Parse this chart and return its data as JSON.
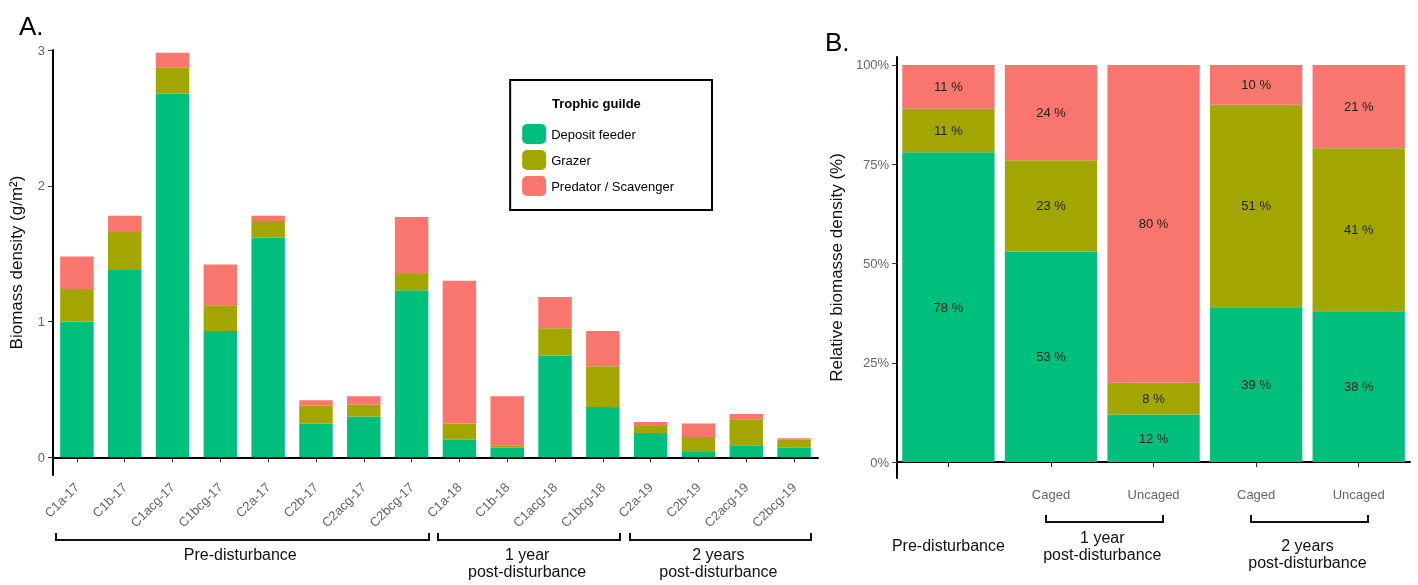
{
  "chart_data": [
    {
      "type": "bar",
      "stacked": true,
      "title": "A.",
      "ylabel": "Biomass density (g/m²)",
      "legend_title": "Trophic guilde",
      "legend": "top right",
      "grid": false,
      "categories": [
        "C1a-17",
        "C1b-17",
        "C1acg-17",
        "C1bcg-17",
        "C2a-17",
        "C2b-17",
        "C2acg-17",
        "C2bcg-17",
        "C1a-18",
        "C1b-18",
        "C1acg-18",
        "C1bcg-18",
        "C2a-19",
        "C2b-19",
        "C2acg-19",
        "C2bcg-19"
      ],
      "series": [
        {
          "name": "Deposit feeder",
          "color": "#00bf7d",
          "values": [
            1.0,
            1.38,
            2.68,
            0.93,
            1.62,
            0.25,
            0.3,
            1.23,
            0.13,
            0.07,
            0.75,
            0.37,
            0.18,
            0.04,
            0.09,
            0.07
          ]
        },
        {
          "name": "Grazer",
          "color": "#a3a500",
          "values": [
            0.24,
            0.28,
            0.19,
            0.19,
            0.12,
            0.13,
            0.09,
            0.12,
            0.12,
            0.02,
            0.2,
            0.3,
            0.05,
            0.11,
            0.19,
            0.06
          ]
        },
        {
          "name": "Predator / Scavenger",
          "color": "#f8766d",
          "values": [
            0.24,
            0.12,
            0.11,
            0.3,
            0.04,
            0.04,
            0.06,
            0.42,
            1.05,
            0.36,
            0.23,
            0.26,
            0.03,
            0.1,
            0.04,
            0.01
          ]
        }
      ],
      "ylim": [
        -0.13,
        3
      ],
      "yticks": [
        0,
        1,
        2,
        3
      ],
      "annotations": [
        "Pre-disturbance",
        "1 year\npost-disturbance",
        "2 years\npost-disturbance"
      ]
    },
    {
      "type": "bar",
      "stacked": true,
      "title": "B.",
      "ylabel": "Relative biomasse density (%)",
      "grid": false,
      "categories": [
        null,
        "Caged",
        "Uncaged",
        "Caged",
        "Uncaged"
      ],
      "series": [
        {
          "color": "#00bf7d",
          "values": [
            78,
            53,
            12,
            39,
            38
          ],
          "value_labels": [
            "78 %",
            "53 %",
            "12 %",
            "39 %",
            "38 %"
          ]
        },
        {
          "color": "#a3a500",
          "values": [
            11,
            23,
            8,
            51,
            41
          ],
          "value_labels": [
            "11 %",
            "23 %",
            "8 %",
            "51 %",
            "41 %"
          ]
        },
        {
          "color": "#f8766d",
          "values": [
            11,
            24,
            80,
            10,
            21
          ],
          "value_labels": [
            "11 %",
            "24 %",
            "80 %",
            "10 %",
            "21 %"
          ]
        }
      ],
      "ylim": [
        -4,
        102
      ],
      "yticks": [
        {
          "value": 0,
          "label": "0%"
        },
        {
          "value": 25,
          "label": "25%"
        },
        {
          "value": 50,
          "label": "50%"
        },
        {
          "value": 75,
          "label": "75%"
        },
        {
          "value": 100,
          "label": "100%"
        }
      ],
      "annotations": [
        "Pre-disturbance",
        "1 year\npost-disturbance",
        "2 years\npost-disturbance"
      ]
    }
  ]
}
